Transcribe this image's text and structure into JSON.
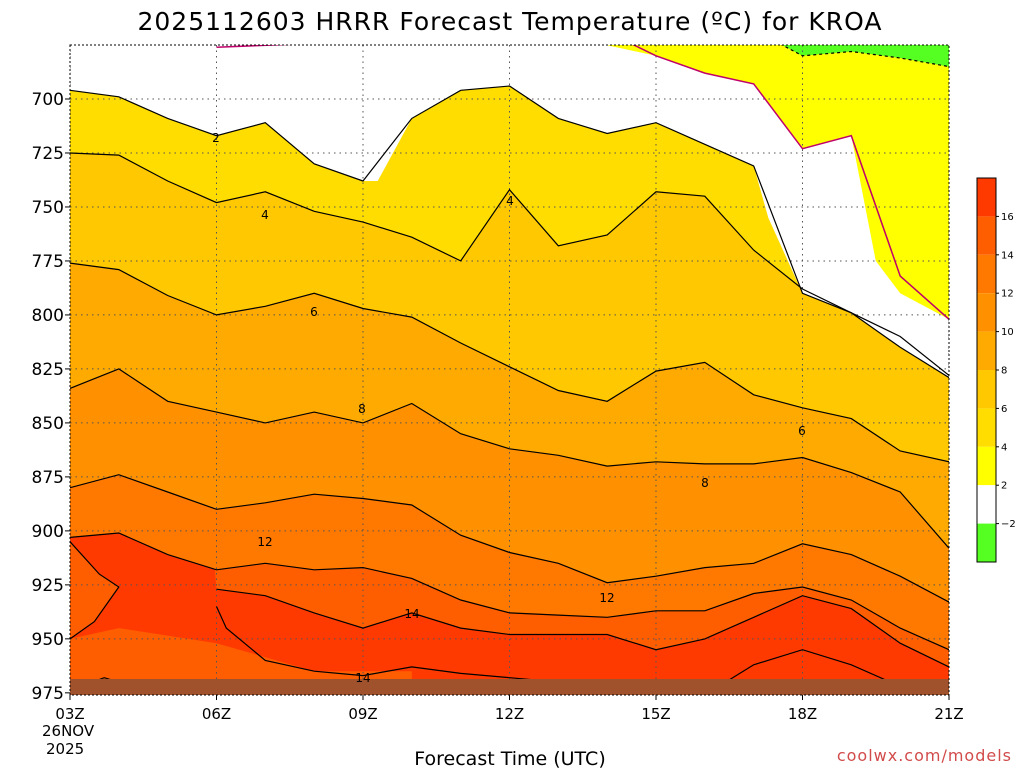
{
  "title": "2025112603 HRRR Forecast Temperature (ºC) for KROA",
  "xlabel": "Forecast Time (UTC)",
  "credit": "coolwx.com/models",
  "colors": {
    "band_lt_neg2": "#55ff22",
    "band_neg2_2": "#ffffff",
    "band_2_4": "#ffff00",
    "band_4_6": "#ffdd00",
    "band_6_8": "#ffc800",
    "band_8_10": "#ffaa00",
    "band_10_12": "#ff9100",
    "band_12_14": "#ff7800",
    "band_14_16": "#ff5e00",
    "band_gt_16": "#ff3a00",
    "ground": "#a0522d",
    "freezing_line": "#c0006a"
  },
  "chart_data": {
    "type": "heatmap",
    "variable": "Temperature (ºC)",
    "x_ticks": [
      "03Z",
      "06Z",
      "09Z",
      "12Z",
      "15Z",
      "18Z",
      "21Z"
    ],
    "x_date_label": [
      "26NOV",
      "2025"
    ],
    "y_ticks": [
      700,
      725,
      750,
      775,
      800,
      825,
      850,
      875,
      900,
      925,
      950,
      975
    ],
    "ylim": [
      976,
      675
    ],
    "color_levels": [
      -2,
      2,
      4,
      6,
      8,
      10,
      12,
      14,
      16
    ],
    "colorbar_labels": [
      "16",
      "14",
      "12",
      "10",
      "8",
      "6",
      "4",
      "2",
      "−2"
    ],
    "contour_labels": [
      "2",
      "4",
      "4",
      "6",
      "6",
      "8",
      "8",
      "12",
      "12",
      "14",
      "14"
    ],
    "hours": [
      3,
      4,
      5,
      6,
      7,
      8,
      9,
      10,
      11,
      12,
      13,
      14,
      15,
      16,
      17,
      18,
      19,
      20,
      21
    ],
    "isotherms": [
      {
        "level": 0,
        "pressure_hPa": [
          null,
          null,
          null,
          676,
          null,
          null,
          null,
          null,
          null,
          null,
          null,
          669,
          680,
          688,
          693,
          723,
          717,
          782,
          802
        ]
      },
      {
        "level": -2,
        "pressure_hPa": [
          null,
          null,
          null,
          null,
          null,
          null,
          null,
          null,
          null,
          null,
          null,
          null,
          null,
          null,
          668,
          680,
          678,
          681,
          685
        ]
      },
      {
        "level": 2,
        "pressure_hPa": [
          696,
          699,
          709,
          717,
          711,
          730,
          738,
          709,
          696,
          694,
          709,
          716,
          711,
          721,
          731,
          790,
          799,
          815,
          829
        ]
      },
      {
        "level": 4,
        "pressure_hPa": [
          725,
          726,
          738,
          748,
          743,
          752,
          757,
          764,
          775,
          742,
          768,
          763,
          743,
          745,
          770,
          788,
          799,
          810,
          828
        ]
      },
      {
        "level": 6,
        "pressure_hPa": [
          776,
          779,
          791,
          800,
          796,
          790,
          797,
          801,
          813,
          824,
          835,
          840,
          826,
          822,
          837,
          843,
          848,
          863,
          868
        ]
      },
      {
        "level": 8,
        "pressure_hPa": [
          834,
          825,
          840,
          845,
          850,
          845,
          850,
          841,
          855,
          862,
          865,
          870,
          868,
          869,
          869,
          866,
          873,
          882,
          908
        ]
      },
      {
        "level": 10,
        "pressure_hPa": [
          880,
          874,
          882,
          890,
          887,
          883,
          885,
          888,
          902,
          910,
          915,
          924,
          921,
          917,
          915,
          906,
          911,
          921,
          933
        ]
      },
      {
        "level": 12,
        "pressure_hPa": [
          903,
          901,
          911,
          918,
          915,
          918,
          917,
          922,
          932,
          938,
          939,
          940,
          937,
          937,
          929,
          926,
          932,
          945,
          955
        ]
      },
      {
        "level": 14,
        "pressure_hPa": [
          null,
          null,
          null,
          927,
          930,
          938,
          945,
          938,
          945,
          948,
          948,
          948,
          955,
          950,
          940,
          930,
          936,
          952,
          963
        ]
      }
    ]
  }
}
